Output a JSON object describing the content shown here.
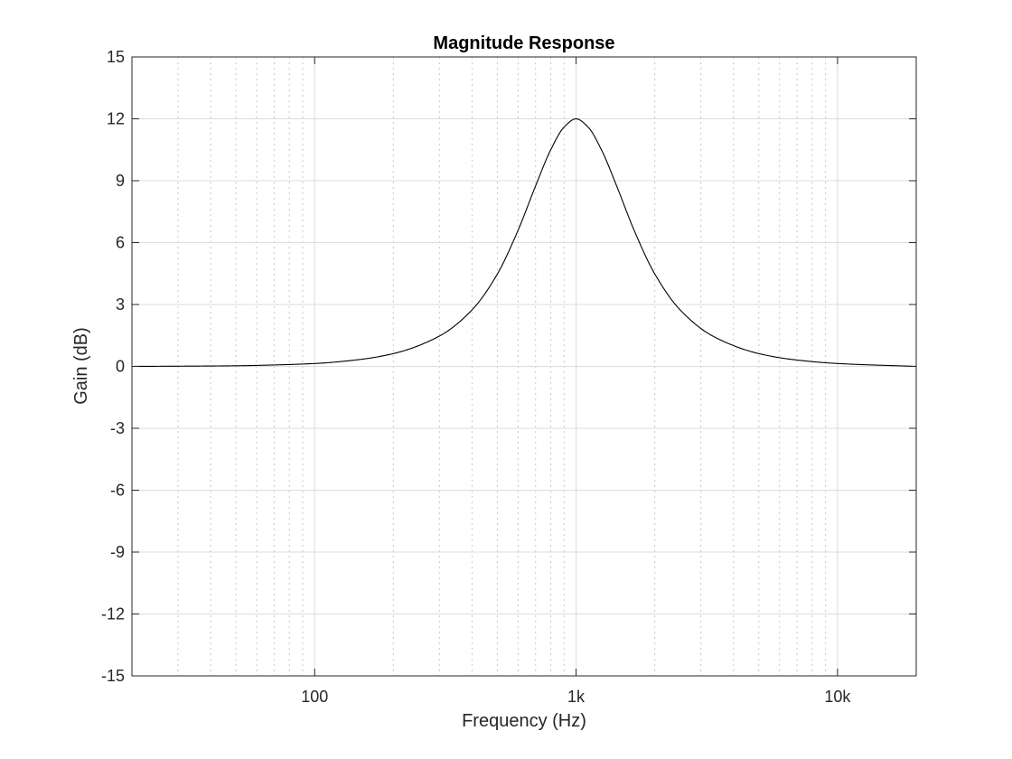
{
  "chart_data": {
    "type": "line",
    "title": "Magnitude Response",
    "xlabel": "Frequency (Hz)",
    "ylabel": "Gain (dB)",
    "x_scale": "log",
    "xlim": [
      20,
      20000
    ],
    "ylim": [
      -15,
      15
    ],
    "grid": true,
    "x_ticks": [
      100,
      1000,
      10000
    ],
    "x_tick_labels": [
      "100",
      "1k",
      "10k"
    ],
    "y_ticks": [
      15,
      12,
      9,
      6,
      3,
      0,
      -3,
      -6,
      -9,
      -12,
      -15
    ],
    "y_tick_labels": [
      "15",
      "12",
      "9",
      "6",
      "3",
      "0",
      "-3",
      "-6",
      "-9",
      "-12",
      "-15"
    ],
    "series": [
      {
        "color": "#000000",
        "x": [
          20,
          30,
          50,
          70,
          100,
          150,
          200,
          300,
          400,
          500,
          600,
          700,
          800,
          900,
          1000,
          1111,
          1250,
          1429,
          1667,
          2000,
          2500,
          3333,
          5000,
          6667,
          10000,
          20000
        ],
        "y": [
          0.0,
          0.01,
          0.03,
          0.07,
          0.14,
          0.34,
          0.62,
          1.47,
          2.74,
          4.48,
          6.6,
          8.75,
          10.5,
          11.6,
          12.0,
          11.6,
          10.5,
          8.75,
          6.6,
          4.48,
          2.74,
          1.47,
          0.62,
          0.34,
          0.14,
          0.0
        ]
      }
    ]
  }
}
